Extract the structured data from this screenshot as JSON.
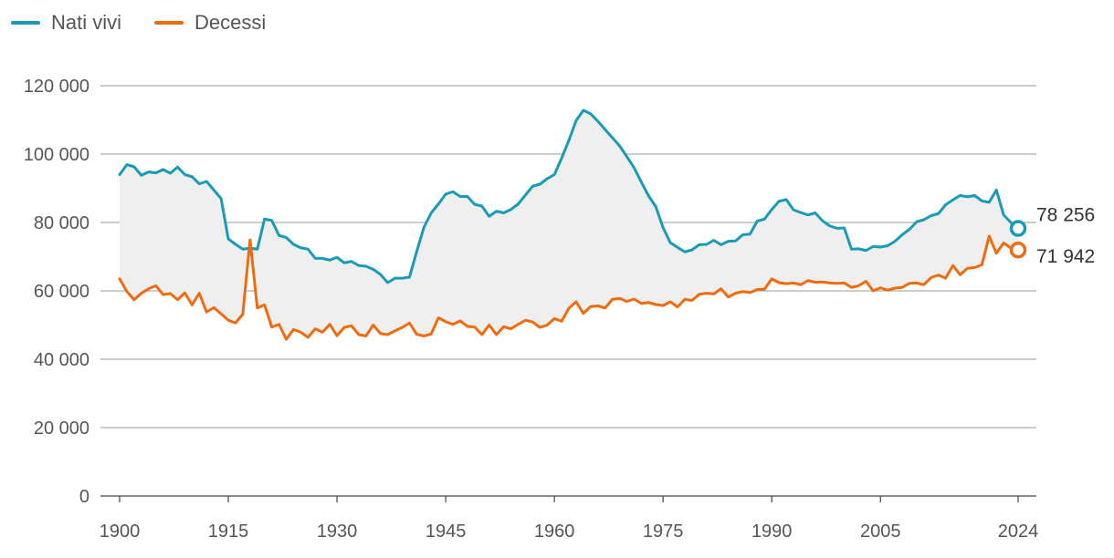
{
  "chart_data": {
    "type": "line",
    "title": "",
    "xlabel": "",
    "ylabel": "",
    "ylim": [
      0,
      120000
    ],
    "xlim": [
      1900,
      2024
    ],
    "yticks": [
      0,
      20000,
      40000,
      60000,
      80000,
      100000,
      120000
    ],
    "ytick_labels": [
      "0",
      "20 000",
      "40 000",
      "60 000",
      "80 000",
      "100 000",
      "120 000"
    ],
    "xticks": [
      1900,
      1915,
      1930,
      1945,
      1960,
      1975,
      1990,
      2005,
      2024
    ],
    "xtick_labels": [
      "1900",
      "1915",
      "1930",
      "1945",
      "1960",
      "1975",
      "1990",
      "2005",
      "2024"
    ],
    "grid": true,
    "legend_position": "top-left",
    "fill_between": true,
    "start_year": 1900,
    "series": [
      {
        "name": "Nati vivi",
        "color": "#1a9bb5",
        "end_label": "78 256",
        "values": [
          94000,
          96900,
          96300,
          93800,
          94800,
          94500,
          95500,
          94400,
          96200,
          94000,
          93400,
          91300,
          92000,
          89500,
          87000,
          75200,
          73600,
          72200,
          72500,
          72200,
          81000,
          80600,
          76200,
          75600,
          73600,
          72600,
          72200,
          69500,
          69500,
          69000,
          69800,
          68200,
          68600,
          67400,
          67200,
          66300,
          64800,
          62400,
          63700,
          63700,
          64000,
          71500,
          78600,
          82800,
          85400,
          88300,
          89000,
          87600,
          87600,
          85300,
          84800,
          81800,
          83300,
          82800,
          83800,
          85400,
          88000,
          90600,
          91200,
          92800,
          94000,
          98800,
          104000,
          109800,
          112800,
          111800,
          109600,
          107200,
          104800,
          102400,
          99300,
          96000,
          91800,
          87800,
          84600,
          78500,
          74100,
          72700,
          71400,
          72000,
          73500,
          73600,
          74800,
          73500,
          74500,
          74600,
          76400,
          76600,
          80400,
          81000,
          83800,
          86200,
          86700,
          83700,
          82900,
          82200,
          82800,
          80500,
          79000,
          78300,
          78400,
          72200,
          72300,
          71800,
          73000,
          72800,
          73200,
          74500,
          76400,
          78000,
          80200,
          80800,
          82000,
          82600,
          85200,
          86600,
          87900,
          87500,
          87900,
          86300,
          85900,
          89500,
          82200,
          80000,
          78256
        ]
      },
      {
        "name": "Decessi",
        "color": "#ee6b0f",
        "end_label": "71 942",
        "values": [
          63500,
          59800,
          57400,
          59300,
          60600,
          61500,
          58900,
          59200,
          57400,
          59400,
          55900,
          59300,
          53800,
          55100,
          53300,
          51400,
          50600,
          53200,
          74900,
          55000,
          55900,
          49400,
          50200,
          45800,
          48700,
          47900,
          46400,
          48900,
          47900,
          50200,
          46900,
          49300,
          49800,
          47200,
          46800,
          50000,
          47500,
          47200,
          48300,
          49300,
          50600,
          47300,
          46800,
          47400,
          52100,
          51000,
          50200,
          51200,
          49600,
          49400,
          47200,
          50000,
          47200,
          49500,
          48900,
          50200,
          51400,
          50900,
          49300,
          50000,
          51900,
          51100,
          54900,
          56800,
          53400,
          55400,
          55600,
          55000,
          57500,
          57800,
          56900,
          57600,
          56300,
          56600,
          56000,
          55700,
          56800,
          55300,
          57500,
          57200,
          59000,
          59300,
          59100,
          60600,
          58200,
          59300,
          59800,
          59500,
          60400,
          60500,
          63500,
          62400,
          62100,
          62300,
          61800,
          63000,
          62500,
          62600,
          62300,
          62200,
          62300,
          61000,
          61500,
          62800,
          60000,
          60900,
          60200,
          60800,
          61000,
          62200,
          62300,
          61800,
          63900,
          64600,
          63700,
          67400,
          64700,
          66600,
          66800,
          67600,
          76000,
          71000,
          74000,
          72500,
          71942
        ]
      }
    ]
  }
}
